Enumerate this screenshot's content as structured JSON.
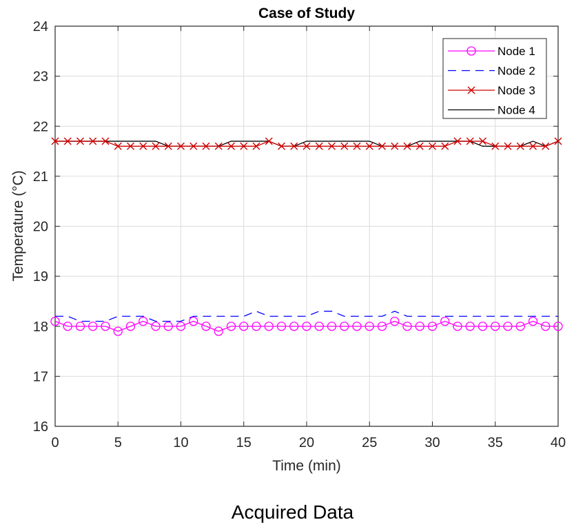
{
  "figure": {
    "caption": "Acquired Data"
  },
  "chart_data": {
    "type": "line",
    "title": "Case of Study",
    "xlabel": "Time (min)",
    "ylabel": "Temperature (°C)",
    "xlim": [
      0,
      40
    ],
    "ylim": [
      16,
      24
    ],
    "xticks": [
      0,
      5,
      10,
      15,
      20,
      25,
      30,
      35,
      40
    ],
    "yticks": [
      16,
      17,
      18,
      19,
      20,
      21,
      22,
      23,
      24
    ],
    "grid": true,
    "legend_position": "top-right",
    "x": [
      0,
      1,
      2,
      3,
      4,
      5,
      6,
      7,
      8,
      9,
      10,
      11,
      12,
      13,
      14,
      15,
      16,
      17,
      18,
      19,
      20,
      21,
      22,
      23,
      24,
      25,
      26,
      27,
      28,
      29,
      30,
      31,
      32,
      33,
      34,
      35,
      36,
      37,
      38,
      39,
      40
    ],
    "series": [
      {
        "name": "Node 1",
        "color": "#ff00ff",
        "line_style": "solid",
        "marker": "circle",
        "values": [
          18.1,
          18.0,
          18.0,
          18.0,
          18.0,
          17.9,
          18.0,
          18.1,
          18.0,
          18.0,
          18.0,
          18.1,
          18.0,
          17.9,
          18.0,
          18.0,
          18.0,
          18.0,
          18.0,
          18.0,
          18.0,
          18.0,
          18.0,
          18.0,
          18.0,
          18.0,
          18.0,
          18.1,
          18.0,
          18.0,
          18.0,
          18.1,
          18.0,
          18.0,
          18.0,
          18.0,
          18.0,
          18.0,
          18.1,
          18.0,
          18.0
        ]
      },
      {
        "name": "Node 2",
        "color": "#0000ff",
        "line_style": "dashed",
        "marker": "none",
        "values": [
          18.2,
          18.2,
          18.1,
          18.1,
          18.1,
          18.2,
          18.2,
          18.2,
          18.1,
          18.1,
          18.1,
          18.2,
          18.2,
          18.2,
          18.2,
          18.2,
          18.3,
          18.2,
          18.2,
          18.2,
          18.2,
          18.3,
          18.3,
          18.2,
          18.2,
          18.2,
          18.2,
          18.3,
          18.2,
          18.2,
          18.2,
          18.2,
          18.2,
          18.2,
          18.2,
          18.2,
          18.2,
          18.2,
          18.2,
          18.2,
          18.2
        ]
      },
      {
        "name": "Node 3",
        "color": "#cc0000",
        "line_style": "solid",
        "marker": "x",
        "values": [
          21.7,
          21.7,
          21.7,
          21.7,
          21.7,
          21.6,
          21.6,
          21.6,
          21.6,
          21.6,
          21.6,
          21.6,
          21.6,
          21.6,
          21.6,
          21.6,
          21.6,
          21.7,
          21.6,
          21.6,
          21.6,
          21.6,
          21.6,
          21.6,
          21.6,
          21.6,
          21.6,
          21.6,
          21.6,
          21.6,
          21.6,
          21.6,
          21.7,
          21.7,
          21.7,
          21.6,
          21.6,
          21.6,
          21.6,
          21.6,
          21.7
        ]
      },
      {
        "name": "Node 4",
        "color": "#000000",
        "line_style": "solid",
        "marker": "none",
        "values": [
          21.7,
          21.7,
          21.7,
          21.7,
          21.7,
          21.7,
          21.7,
          21.7,
          21.7,
          21.6,
          21.6,
          21.6,
          21.6,
          21.6,
          21.7,
          21.7,
          21.7,
          21.7,
          21.6,
          21.6,
          21.7,
          21.7,
          21.7,
          21.7,
          21.7,
          21.7,
          21.6,
          21.6,
          21.6,
          21.7,
          21.7,
          21.7,
          21.7,
          21.7,
          21.6,
          21.6,
          21.6,
          21.6,
          21.7,
          21.6,
          21.7
        ]
      }
    ]
  }
}
